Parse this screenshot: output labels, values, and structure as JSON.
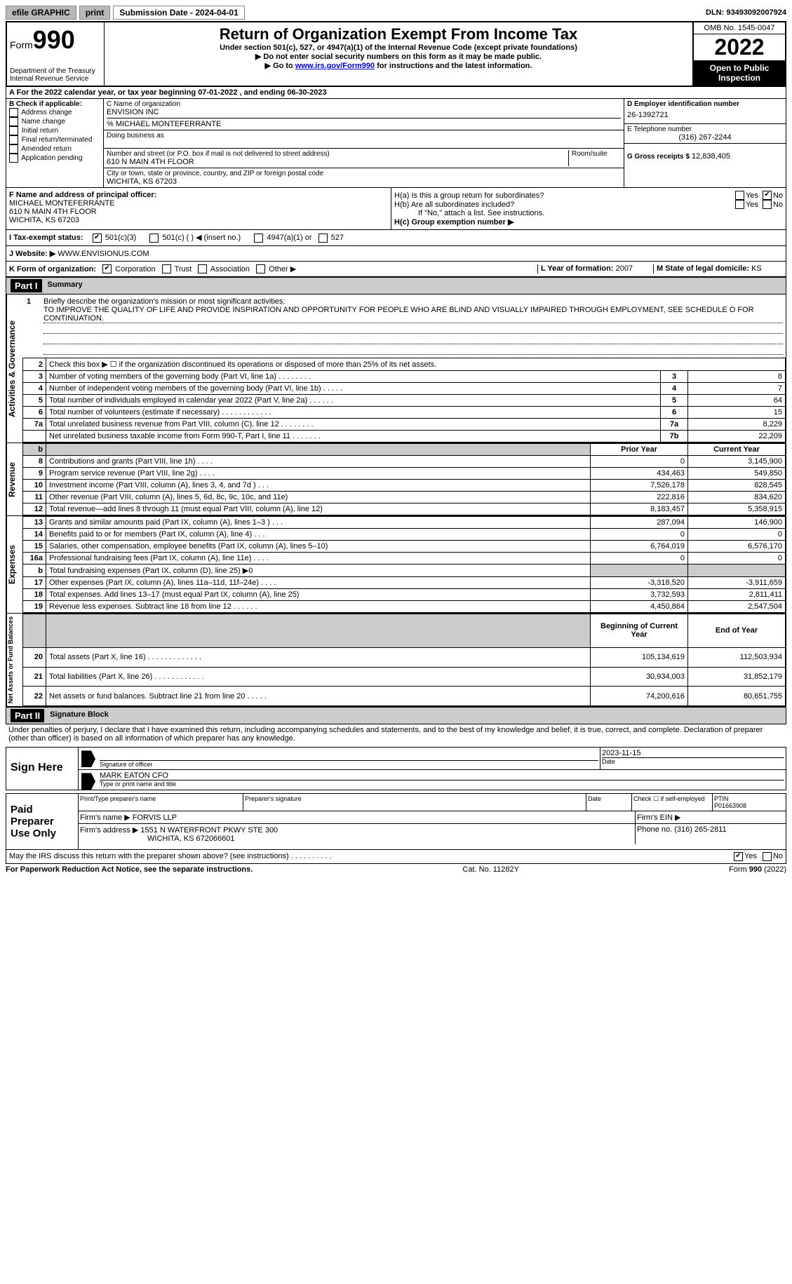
{
  "topbar": {
    "efile": "efile GRAPHIC",
    "print": "print",
    "sub_date_label": "Submission Date - 2024-04-01",
    "dln_label": "DLN: 93493092007924"
  },
  "header": {
    "form_word": "Form",
    "form_num": "990",
    "dept": "Department of the Treasury",
    "irs": "Internal Revenue Service",
    "title": "Return of Organization Exempt From Income Tax",
    "subtitle": "Under section 501(c), 527, or 4947(a)(1) of the Internal Revenue Code (except private foundations)",
    "line1": "▶ Do not enter social security numbers on this form as it may be made public.",
    "line2_pre": "▶ Go to ",
    "line2_link": "www.irs.gov/Form990",
    "line2_post": " for instructions and the latest information.",
    "omb": "OMB No. 1545-0047",
    "year": "2022",
    "open": "Open to Public Inspection"
  },
  "row_a": {
    "text": "A For the 2022 calendar year, or tax year beginning 07-01-2022    , and ending 06-30-2023"
  },
  "col_b": {
    "header": "B Check if applicable:",
    "items": [
      "Address change",
      "Name change",
      "Initial return",
      "Final return/terminated",
      "Amended return",
      "Application pending"
    ]
  },
  "col_c": {
    "name_label": "C Name of organization",
    "name": "ENVISION INC",
    "care_of": "% MICHAEL MONTEFERRANTE",
    "dba_label": "Doing business as",
    "addr_label": "Number and street (or P.O. box if mail is not delivered to street address)",
    "room_label": "Room/suite",
    "addr": "610 N MAIN 4TH FLOOR",
    "city_label": "City or town, state or province, country, and ZIP or foreign postal code",
    "city": "WICHITA, KS  67203"
  },
  "col_d": {
    "d_label": "D Employer identification number",
    "d_val": "26-1392721",
    "e_label": "E Telephone number",
    "e_val": "(316) 267-2244",
    "g_label": "G Gross receipts $",
    "g_val": "12,838,405"
  },
  "fh": {
    "f_label": "F Name and address of principal officer:",
    "f_name": "MICHAEL MONTEFERRANTE",
    "f_addr1": "610 N MAIN 4TH FLOOR",
    "f_addr2": "WICHITA, KS  67203",
    "ha": "H(a)  Is this a group return for subordinates?",
    "hb": "H(b)  Are all subordinates included?",
    "hb_note": "If \"No,\" attach a list. See instructions.",
    "hc": "H(c)  Group exemption number ▶",
    "yes": "Yes",
    "no": "No"
  },
  "tax_status": {
    "i_label": "I    Tax-exempt status:",
    "c3": "501(c)(3)",
    "c": "501(c) (   ) ◀ (insert no.)",
    "a1": "4947(a)(1) or",
    "s527": "527"
  },
  "website": {
    "j_label": "J   Website: ▶",
    "val": "WWW.ENVISIONUS.COM"
  },
  "klm": {
    "k_label": "K Form of organization:",
    "corp": "Corporation",
    "trust": "Trust",
    "assoc": "Association",
    "other": "Other ▶",
    "l_label": "L Year of formation:",
    "l_val": "2007",
    "m_label": "M State of legal domicile:",
    "m_val": "KS"
  },
  "part1": {
    "label": "Part I",
    "title": "Summary"
  },
  "mission": {
    "num": "1",
    "label": "Briefly describe the organization's mission or most significant activities:",
    "text": "TO IMPROVE THE QUALITY OF LIFE AND PROVIDE INSPIRATION AND OPPORTUNITY FOR PEOPLE WHO ARE BLIND AND VISUALLY IMPAIRED THROUGH EMPLOYMENT, SEE SCHEDULE O FOR CONTINUATION."
  },
  "gov_rows": [
    {
      "n": "2",
      "label": "Check this box ▶ ☐  if the organization discontinued its operations or disposed of more than 25% of its net assets.",
      "box": "",
      "val": ""
    },
    {
      "n": "3",
      "label": "Number of voting members of the governing body (Part VI, line 1a)   .    .    .    .    .    .    .    .",
      "box": "3",
      "val": "8"
    },
    {
      "n": "4",
      "label": "Number of independent voting members of the governing body (Part VI, line 1b)  .    .    .    .    .",
      "box": "4",
      "val": "7"
    },
    {
      "n": "5",
      "label": "Total number of individuals employed in calendar year 2022 (Part V, line 2a)  .    .    .    .    .    .",
      "box": "5",
      "val": "64"
    },
    {
      "n": "6",
      "label": "Total number of volunteers (estimate if necessary)    .    .    .    .    .    .    .    .    .    .    .    .",
      "box": "6",
      "val": "15"
    },
    {
      "n": "7a",
      "label": "Total unrelated business revenue from Part VIII, column (C), line 12   .    .    .    .    .    .    .    .",
      "box": "7a",
      "val": "8,229"
    },
    {
      "n": "",
      "label": "Net unrelated business taxable income from Form 990-T, Part I, line 11  .    .    .    .    .    .    .",
      "box": "7b",
      "val": "22,209"
    }
  ],
  "rev_header": {
    "n": "b",
    "prior": "Prior Year",
    "current": "Current Year"
  },
  "rev_rows": [
    {
      "n": "8",
      "label": "Contributions and grants (Part VIII, line 1h)    .    .    .    .",
      "prior": "0",
      "cur": "3,145,900"
    },
    {
      "n": "9",
      "label": "Program service revenue (Part VIII, line 2g)   .    .    .    .",
      "prior": "434,463",
      "cur": "549,850"
    },
    {
      "n": "10",
      "label": "Investment income (Part VIII, column (A), lines 3, 4, and 7d )    .    .    .",
      "prior": "7,526,178",
      "cur": "828,545"
    },
    {
      "n": "11",
      "label": "Other revenue (Part VIII, column (A), lines 5, 6d, 8c, 9c, 10c, and 11e)",
      "prior": "222,816",
      "cur": "834,620"
    },
    {
      "n": "12",
      "label": "Total revenue—add lines 8 through 11 (must equal Part VIII, column (A), line 12)",
      "prior": "8,183,457",
      "cur": "5,358,915"
    }
  ],
  "exp_rows": [
    {
      "n": "13",
      "label": "Grants and similar amounts paid (Part IX, column (A), lines 1–3 )   .    .    .",
      "prior": "287,094",
      "cur": "146,900"
    },
    {
      "n": "14",
      "label": "Benefits paid to or for members (Part IX, column (A), line 4)   .    .    .",
      "prior": "0",
      "cur": "0"
    },
    {
      "n": "15",
      "label": "Salaries, other compensation, employee benefits (Part IX, column (A), lines 5–10)",
      "prior": "6,764,019",
      "cur": "6,576,170"
    },
    {
      "n": "16a",
      "label": "Professional fundraising fees (Part IX, column (A), line 11e)   .    .    .    .",
      "prior": "0",
      "cur": "0"
    },
    {
      "n": "b",
      "label": "Total fundraising expenses (Part IX, column (D), line 25) ▶0",
      "prior": "GRAY",
      "cur": "GRAY"
    },
    {
      "n": "17",
      "label": "Other expenses (Part IX, column (A), lines 11a–11d, 11f–24e)   .    .    .    .",
      "prior": "-3,318,520",
      "cur": "-3,911,659"
    },
    {
      "n": "18",
      "label": "Total expenses. Add lines 13–17 (must equal Part IX, column (A), line 25)",
      "prior": "3,732,593",
      "cur": "2,811,411"
    },
    {
      "n": "19",
      "label": "Revenue less expenses. Subtract line 18 from line 12   .    .    .    .    .    .",
      "prior": "4,450,864",
      "cur": "2,547,504"
    }
  ],
  "net_header": {
    "prior": "Beginning of Current Year",
    "cur": "End of Year"
  },
  "net_rows": [
    {
      "n": "20",
      "label": "Total assets (Part X, line 16)  .    .    .    .    .    .    .    .    .    .    .    .    .",
      "prior": "105,134,619",
      "cur": "112,503,934"
    },
    {
      "n": "21",
      "label": "Total liabilities (Part X, line 26)  .    .    .    .    .    .    .    .    .    .    .    .",
      "prior": "30,934,003",
      "cur": "31,852,179"
    },
    {
      "n": "22",
      "label": "Net assets or fund balances. Subtract line 21 from line 20  .    .    .    .    .",
      "prior": "74,200,616",
      "cur": "80,651,755"
    }
  ],
  "side_labels": {
    "gov": "Activities & Governance",
    "rev": "Revenue",
    "exp": "Expenses",
    "net": "Net Assets or Fund Balances"
  },
  "part2": {
    "label": "Part II",
    "title": "Signature Block",
    "decl": "Under penalties of perjury, I declare that I have examined this return, including accompanying schedules and statements, and to the best of my knowledge and belief, it is true, correct, and complete. Declaration of preparer (other than officer) is based on all information of which preparer has any knowledge."
  },
  "sign": {
    "here": "Sign Here",
    "sig_label": "Signature of officer",
    "date_label": "Date",
    "date_val": "2023-11-15",
    "name_val": "MARK EATON CFO",
    "name_label": "Type or print name and title"
  },
  "paid": {
    "title": "Paid Preparer Use Only",
    "prep_name_label": "Print/Type preparer's name",
    "prep_sig_label": "Preparer's signature",
    "date_label": "Date",
    "check_label": "Check ☐ if self-employed",
    "ptin_label": "PTIN",
    "ptin_val": "P01663908",
    "firm_name_label": "Firm's name      ▶",
    "firm_name": "FORVIS LLP",
    "firm_ein_label": "Firm's EIN ▶",
    "firm_addr_label": "Firm's address ▶",
    "firm_addr1": "1551 N WATERFRONT PKWY STE 300",
    "firm_addr2": "WICHITA, KS  672066601",
    "phone_label": "Phone no.",
    "phone_val": "(316) 265-2811"
  },
  "discuss": {
    "q": "May the IRS discuss this return with the preparer shown above? (see instructions)   .    .    .    .    .    .    .    .    .    .",
    "yes": "Yes",
    "no": "No"
  },
  "footer": {
    "left": "For Paperwork Reduction Act Notice, see the separate instructions.",
    "mid": "Cat. No. 11282Y",
    "right": "Form 990 (2022)"
  }
}
